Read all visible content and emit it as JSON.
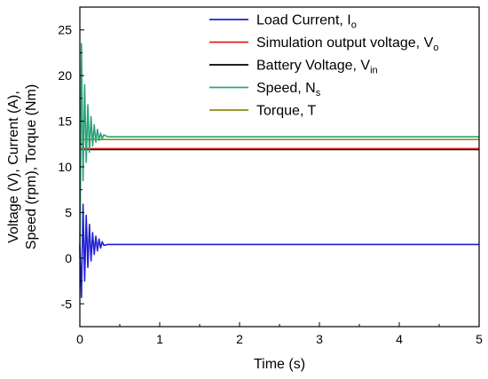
{
  "chart_data": {
    "type": "line",
    "xlabel": "Time (s)",
    "ylabel_line1": "Voltage (V), Current (A),",
    "ylabel_line2": "Speed (rpm), Torque (Nm)",
    "xlim": [
      0,
      5
    ],
    "ylim": [
      -7.5,
      27.5
    ],
    "xticks": [
      0,
      1,
      2,
      3,
      4,
      5
    ],
    "xtick_labels": [
      "0",
      "1",
      "2",
      "3",
      "4",
      "5"
    ],
    "yticks": [
      -5,
      0,
      5,
      10,
      15,
      20,
      25
    ],
    "ytick_labels": [
      "-5",
      "0",
      "5",
      "10",
      "15",
      "20",
      "25"
    ],
    "grid": false,
    "legend_placement": "top-right",
    "series": [
      {
        "key": "load_current",
        "name": "Load Current, I",
        "subscript": "o",
        "color": "#1f1fd6",
        "steady_value": 1.5,
        "x": [
          0,
          0.02,
          0.04,
          0.06,
          0.08,
          0.1,
          0.12,
          0.14,
          0.16,
          0.18,
          0.2,
          0.22,
          0.24,
          0.26,
          0.28,
          0.3,
          0.35,
          0.45,
          5
        ],
        "y": [
          1.5,
          -4.3,
          5.9,
          -2.5,
          4.7,
          -1.0,
          3.7,
          -0.3,
          2.8,
          0.4,
          2.4,
          0.8,
          2.1,
          1.1,
          1.8,
          1.4,
          1.5,
          1.5,
          1.5
        ]
      },
      {
        "key": "simulation_output_voltage",
        "name": "Simulation output voltage, V",
        "subscript": "o",
        "color": "#e02020",
        "steady_value": 12.0,
        "x": [
          0,
          5
        ],
        "y": [
          12.0,
          12.0
        ]
      },
      {
        "key": "battery_voltage",
        "name": "Battery Voltage, V",
        "subscript": "in",
        "color": "#000000",
        "steady_value": 11.9,
        "x": [
          0,
          5
        ],
        "y": [
          11.9,
          11.9
        ]
      },
      {
        "key": "speed",
        "name": "Speed, N",
        "subscript": "s",
        "color": "#2aa37a",
        "steady_value": 13.3,
        "x": [
          0,
          0.02,
          0.04,
          0.06,
          0.08,
          0.1,
          0.12,
          0.14,
          0.16,
          0.18,
          0.2,
          0.22,
          0.24,
          0.26,
          0.28,
          0.3,
          0.35,
          0.45,
          5
        ],
        "y": [
          0,
          23.5,
          8.5,
          19.0,
          10.5,
          16.8,
          11.6,
          15.5,
          12.3,
          14.6,
          12.7,
          14.1,
          12.9,
          13.7,
          13.1,
          13.5,
          13.3,
          13.3,
          13.3
        ]
      },
      {
        "key": "torque",
        "name": "Torque, T",
        "subscript": "",
        "color": "#8c8c14",
        "steady_value": 13.0,
        "x": [
          0,
          5
        ],
        "y": [
          13.0,
          13.0
        ]
      }
    ]
  }
}
